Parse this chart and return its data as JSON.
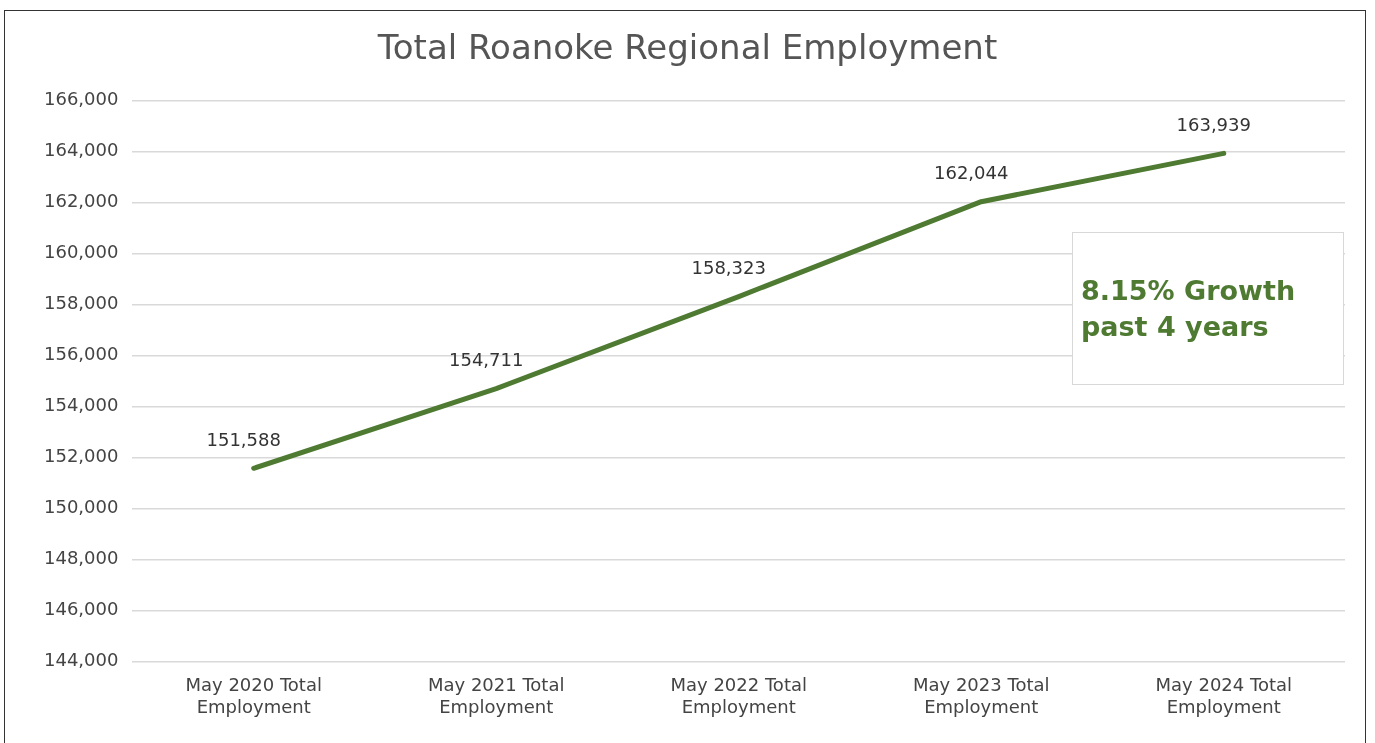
{
  "chart_data": {
    "type": "line",
    "title": "Total Roanoke Regional Employment",
    "categories": [
      "May 2020 Total Employment",
      "May 2021 Total Employment",
      "May 2022 Total Employment",
      "May 2023 Total Employment",
      "May 2024 Total Employment"
    ],
    "series": [
      {
        "color": "#4e7a32",
        "values": [
          151588,
          154711,
          158323,
          162044,
          163939
        ],
        "value_labels": [
          "151,588",
          "154,711",
          "158,323",
          "162,044",
          "163,939"
        ]
      }
    ],
    "ylim": [
      144000,
      166000
    ],
    "yticks": [
      {
        "value": 144000,
        "label": "144,000"
      },
      {
        "value": 146000,
        "label": "146,000"
      },
      {
        "value": 148000,
        "label": "148,000"
      },
      {
        "value": 150000,
        "label": "150,000"
      },
      {
        "value": 152000,
        "label": "152,000"
      },
      {
        "value": 154000,
        "label": "154,000"
      },
      {
        "value": 156000,
        "label": "156,000"
      },
      {
        "value": 158000,
        "label": "158,000"
      },
      {
        "value": 160000,
        "label": "160,000"
      },
      {
        "value": 162000,
        "label": "162,000"
      },
      {
        "value": 164000,
        "label": "164,000"
      },
      {
        "value": 166000,
        "label": "166,000"
      }
    ],
    "grid": "y",
    "legend": false,
    "marker": "none",
    "line_style": "solid",
    "annotations": [
      "8.15% Growth past 4 years"
    ]
  }
}
